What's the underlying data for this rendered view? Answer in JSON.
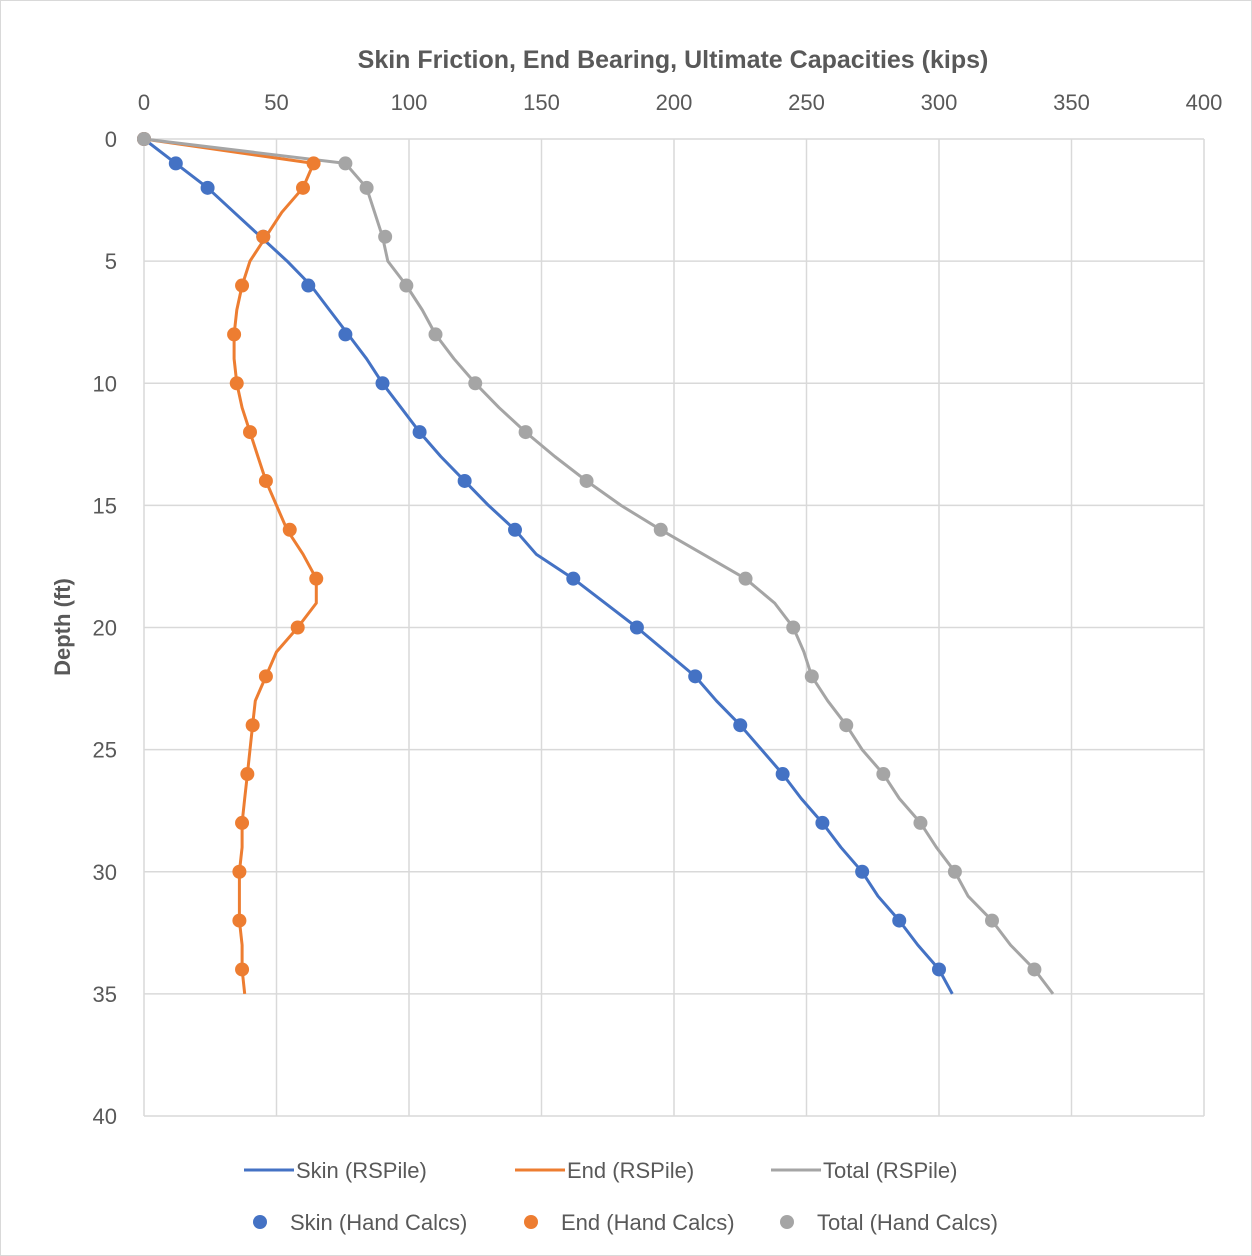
{
  "chart_data": {
    "type": "line",
    "title": "Skin Friction, End Bearing, Ultimate Capacities (kips)",
    "xlabel": "",
    "ylabel": "Depth (ft)",
    "xlim": [
      0,
      400
    ],
    "ylim": [
      0,
      40
    ],
    "y_inverted": true,
    "x_axis_position": "top",
    "x_ticks": [
      0,
      50,
      100,
      150,
      200,
      250,
      300,
      350,
      400
    ],
    "y_ticks": [
      0,
      5,
      10,
      15,
      20,
      25,
      30,
      35,
      40
    ],
    "grid": true,
    "legend_position": "bottom",
    "series": [
      {
        "name": "Skin (RSPile)",
        "style": "line",
        "color": "#4472c4",
        "points": [
          [
            0,
            0
          ],
          [
            12,
            1
          ],
          [
            24,
            2
          ],
          [
            34,
            3
          ],
          [
            44,
            4
          ],
          [
            54,
            5
          ],
          [
            63,
            6
          ],
          [
            70,
            7
          ],
          [
            77,
            8
          ],
          [
            84,
            9
          ],
          [
            90,
            10
          ],
          [
            97,
            11
          ],
          [
            104,
            12
          ],
          [
            112,
            13
          ],
          [
            121,
            14
          ],
          [
            130,
            15
          ],
          [
            140,
            16
          ],
          [
            148,
            17
          ],
          [
            162,
            18
          ],
          [
            174,
            19
          ],
          [
            186,
            20
          ],
          [
            197,
            21
          ],
          [
            208,
            22
          ],
          [
            216,
            23
          ],
          [
            225,
            24
          ],
          [
            233,
            25
          ],
          [
            241,
            26
          ],
          [
            248,
            27
          ],
          [
            256,
            28
          ],
          [
            263,
            29
          ],
          [
            271,
            30
          ],
          [
            277,
            31
          ],
          [
            285,
            32
          ],
          [
            292,
            33
          ],
          [
            300,
            34
          ],
          [
            305,
            35
          ]
        ]
      },
      {
        "name": "End (RSPile)",
        "style": "line",
        "color": "#ed7d31",
        "points": [
          [
            0,
            0
          ],
          [
            64,
            1
          ],
          [
            60,
            2
          ],
          [
            52,
            3
          ],
          [
            46,
            4
          ],
          [
            40,
            5
          ],
          [
            37,
            6
          ],
          [
            35,
            7
          ],
          [
            34,
            8
          ],
          [
            34,
            9
          ],
          [
            35,
            10
          ],
          [
            37,
            11
          ],
          [
            40,
            12
          ],
          [
            43,
            13
          ],
          [
            46,
            14
          ],
          [
            50,
            15
          ],
          [
            54,
            16
          ],
          [
            60,
            17
          ],
          [
            65,
            18
          ],
          [
            65,
            19
          ],
          [
            58,
            20
          ],
          [
            50,
            21
          ],
          [
            46,
            22
          ],
          [
            42,
            23
          ],
          [
            41,
            24
          ],
          [
            40,
            25
          ],
          [
            39,
            26
          ],
          [
            38,
            27
          ],
          [
            37,
            28
          ],
          [
            37,
            29
          ],
          [
            36,
            30
          ],
          [
            36,
            31
          ],
          [
            36,
            32
          ],
          [
            37,
            33
          ],
          [
            37,
            34
          ],
          [
            38,
            35
          ]
        ]
      },
      {
        "name": "Total (RSPile)",
        "style": "line",
        "color": "#a5a5a5",
        "points": [
          [
            0,
            0
          ],
          [
            76,
            1
          ],
          [
            84,
            2
          ],
          [
            87,
            3
          ],
          [
            90,
            4
          ],
          [
            92,
            5
          ],
          [
            99,
            6
          ],
          [
            105,
            7
          ],
          [
            110,
            8
          ],
          [
            117,
            9
          ],
          [
            125,
            10
          ],
          [
            134,
            11
          ],
          [
            144,
            12
          ],
          [
            155,
            13
          ],
          [
            167,
            14
          ],
          [
            180,
            15
          ],
          [
            195,
            16
          ],
          [
            211,
            17
          ],
          [
            227,
            18
          ],
          [
            238,
            19
          ],
          [
            245,
            20
          ],
          [
            249,
            21
          ],
          [
            252,
            22
          ],
          [
            258,
            23
          ],
          [
            265,
            24
          ],
          [
            271,
            25
          ],
          [
            279,
            26
          ],
          [
            285,
            27
          ],
          [
            293,
            28
          ],
          [
            299,
            29
          ],
          [
            306,
            30
          ],
          [
            311,
            31
          ],
          [
            320,
            32
          ],
          [
            327,
            33
          ],
          [
            336,
            34
          ],
          [
            343,
            35
          ]
        ]
      },
      {
        "name": "Skin (Hand Calcs)",
        "style": "markers",
        "color": "#4472c4",
        "points": [
          [
            0,
            0
          ],
          [
            12,
            1
          ],
          [
            24,
            2
          ],
          [
            45,
            4
          ],
          [
            62,
            6
          ],
          [
            76,
            8
          ],
          [
            90,
            10
          ],
          [
            104,
            12
          ],
          [
            121,
            14
          ],
          [
            140,
            16
          ],
          [
            162,
            18
          ],
          [
            186,
            20
          ],
          [
            208,
            22
          ],
          [
            225,
            24
          ],
          [
            241,
            26
          ],
          [
            256,
            28
          ],
          [
            271,
            30
          ],
          [
            285,
            32
          ],
          [
            300,
            34
          ]
        ]
      },
      {
        "name": "End (Hand Calcs)",
        "style": "markers",
        "color": "#ed7d31",
        "points": [
          [
            0,
            0
          ],
          [
            64,
            1
          ],
          [
            60,
            2
          ],
          [
            45,
            4
          ],
          [
            37,
            6
          ],
          [
            34,
            8
          ],
          [
            35,
            10
          ],
          [
            40,
            12
          ],
          [
            46,
            14
          ],
          [
            55,
            16
          ],
          [
            65,
            18
          ],
          [
            58,
            20
          ],
          [
            46,
            22
          ],
          [
            41,
            24
          ],
          [
            39,
            26
          ],
          [
            37,
            28
          ],
          [
            36,
            30
          ],
          [
            36,
            32
          ],
          [
            37,
            34
          ]
        ]
      },
      {
        "name": "Total (Hand Calcs)",
        "style": "markers",
        "color": "#a5a5a5",
        "points": [
          [
            0,
            0
          ],
          [
            76,
            1
          ],
          [
            84,
            2
          ],
          [
            91,
            4
          ],
          [
            99,
            6
          ],
          [
            110,
            8
          ],
          [
            125,
            10
          ],
          [
            144,
            12
          ],
          [
            167,
            14
          ],
          [
            195,
            16
          ],
          [
            227,
            18
          ],
          [
            245,
            20
          ],
          [
            252,
            22
          ],
          [
            265,
            24
          ],
          [
            279,
            26
          ],
          [
            293,
            28
          ],
          [
            306,
            30
          ],
          [
            320,
            32
          ],
          [
            336,
            34
          ]
        ]
      }
    ]
  }
}
